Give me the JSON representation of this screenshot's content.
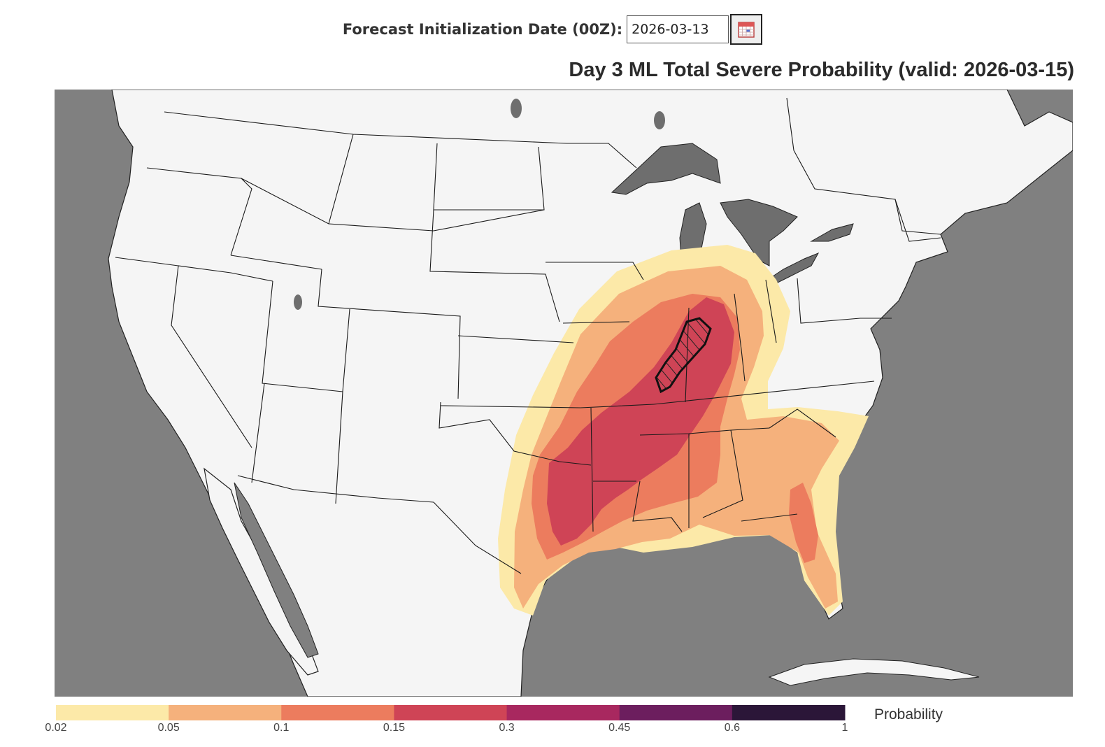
{
  "header": {
    "date_label": "Forecast Initialization Date (00Z):",
    "date_value": "2026-03-13",
    "calendar_icon": "calendar-icon"
  },
  "map": {
    "title": "Day 3 ML Total Severe Probability (valid: 2026-03-15)",
    "colors": {
      "land": "#f5f5f5",
      "water": "#808080",
      "hatch": "#222222"
    }
  },
  "legend": {
    "title": "Probability",
    "ticks": [
      "0.02",
      "0.05",
      "0.1",
      "0.15",
      "0.3",
      "0.45",
      "0.6",
      "1"
    ],
    "colors": [
      "#fce9a8",
      "#f5b17c",
      "#ec7c5e",
      "#cf4456",
      "#a8285f",
      "#6c1e5e",
      "#2b1638"
    ]
  }
}
